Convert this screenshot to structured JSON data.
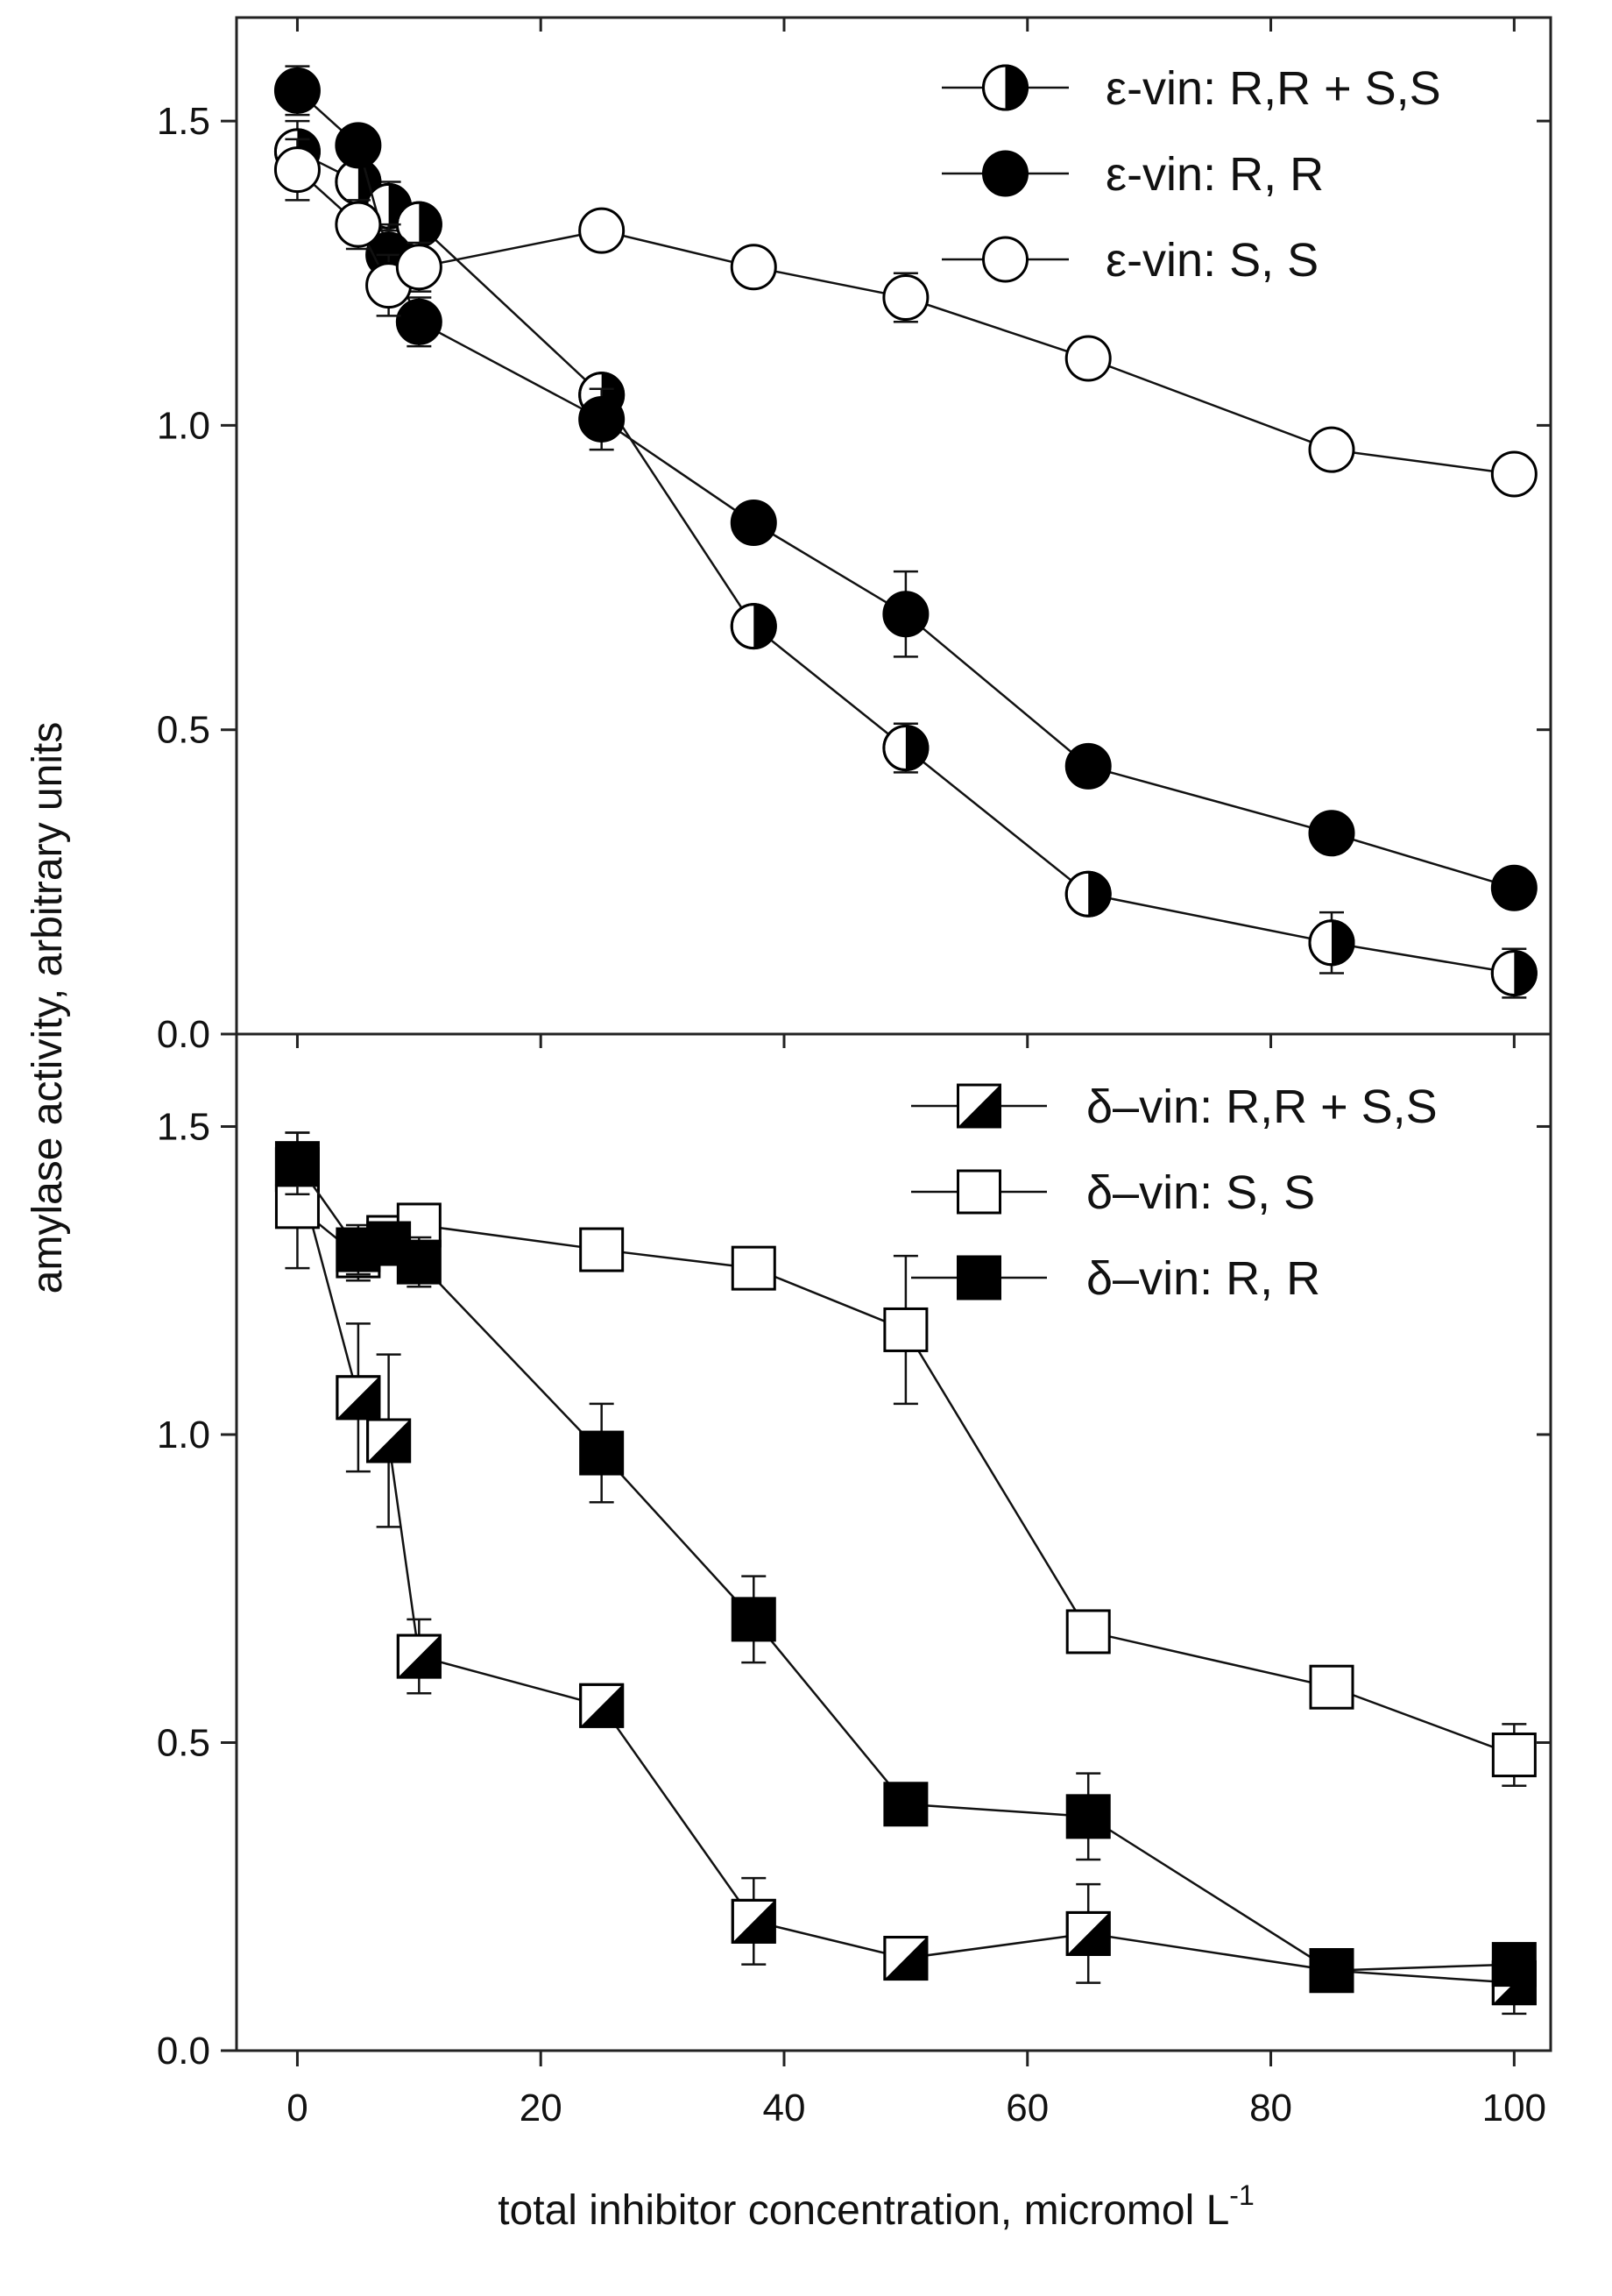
{
  "chart_data": [
    {
      "type": "line",
      "panel": "top",
      "title": "",
      "xlabel": "total inhibitor concentration, micromol L",
      "xlabel_superscript": "-1",
      "ylabel": "amylase activity, arbitrary units",
      "xlim": [
        -5,
        103
      ],
      "ylim": [
        0.0,
        1.67
      ],
      "xticks": [
        0,
        20,
        40,
        60,
        80,
        100
      ],
      "yticks": [
        0.0,
        0.5,
        1.0,
        1.5
      ],
      "ytick_labels": [
        "0.0",
        "0.5",
        "1.0",
        "1.5"
      ],
      "legend_position": "top-right",
      "series": [
        {
          "name": "ε-vin: R,R + S,S",
          "marker": "circle-half",
          "x": [
            0,
            5,
            7.5,
            10,
            25,
            37.5,
            50,
            65,
            85,
            100
          ],
          "y": [
            1.45,
            1.4,
            1.36,
            1.33,
            1.05,
            0.67,
            0.47,
            0.23,
            0.15,
            0.1
          ],
          "err": [
            0.05,
            0.03,
            0.04,
            0.03,
            0.02,
            0.02,
            0.04,
            0.02,
            0.05,
            0.04
          ]
        },
        {
          "name": "ε-vin: R, R",
          "marker": "circle-filled",
          "x": [
            0,
            5,
            7.5,
            10,
            25,
            37.5,
            50,
            65,
            85,
            100
          ],
          "y": [
            1.55,
            1.46,
            1.28,
            1.17,
            1.01,
            0.84,
            0.69,
            0.44,
            0.33,
            0.24
          ],
          "err": [
            0.04,
            0.03,
            0.05,
            0.04,
            0.05,
            0.02,
            0.07,
            0.02,
            0.02,
            0.02
          ]
        },
        {
          "name": "ε-vin: S, S",
          "marker": "circle-open",
          "x": [
            0,
            5,
            7.5,
            10,
            25,
            37.5,
            50,
            65,
            85,
            100
          ],
          "y": [
            1.42,
            1.33,
            1.23,
            1.26,
            1.32,
            1.26,
            1.21,
            1.11,
            0.96,
            0.92
          ],
          "err": [
            0.05,
            0.04,
            0.05,
            0.04,
            0.02,
            0.02,
            0.04,
            0.02,
            0.02,
            0.02
          ]
        }
      ]
    },
    {
      "type": "line",
      "panel": "bottom",
      "title": "",
      "xlabel": "total inhibitor concentration, micromol L",
      "xlabel_superscript": "-1",
      "ylabel": "amylase activity, arbitrary units",
      "xlim": [
        -5,
        103
      ],
      "ylim": [
        0.0,
        1.65
      ],
      "xticks": [
        0,
        20,
        40,
        60,
        80,
        100
      ],
      "xtick_labels": [
        "0",
        "20",
        "40",
        "60",
        "80",
        "100"
      ],
      "yticks": [
        0.0,
        0.5,
        1.0,
        1.5
      ],
      "ytick_labels": [
        "0.0",
        "0.5",
        "1.0",
        "1.5"
      ],
      "legend_position": "top-right",
      "series": [
        {
          "name": "δ–vin: R,R + S,S",
          "marker": "square-diagonal",
          "x": [
            0,
            5,
            7.5,
            10,
            25,
            37.5,
            50,
            65,
            85,
            100
          ],
          "y": [
            1.43,
            1.06,
            0.99,
            0.64,
            0.56,
            0.21,
            0.15,
            0.19,
            0.13,
            0.11
          ],
          "err": [
            0.06,
            0.12,
            0.14,
            0.06,
            0.02,
            0.07,
            0.03,
            0.08,
            0.02,
            0.05
          ]
        },
        {
          "name": "δ–vin: S, S",
          "marker": "square-open",
          "x": [
            0,
            5,
            7.5,
            10,
            25,
            37.5,
            50,
            65,
            85,
            100
          ],
          "y": [
            1.37,
            1.29,
            1.32,
            1.34,
            1.3,
            1.27,
            1.17,
            0.68,
            0.59,
            0.48
          ],
          "err": [
            0.1,
            0.04,
            0.03,
            0.02,
            0.02,
            0.02,
            0.12,
            0.02,
            0.02,
            0.05
          ]
        },
        {
          "name": "δ–vin: R, R",
          "marker": "square-filled",
          "x": [
            0,
            5,
            7.5,
            10,
            25,
            37.5,
            50,
            65,
            85,
            100
          ],
          "y": [
            1.44,
            1.3,
            1.31,
            1.28,
            0.97,
            0.7,
            0.4,
            0.38,
            0.13,
            0.14
          ],
          "err": [
            0.05,
            0.04,
            0.03,
            0.04,
            0.08,
            0.07,
            0.02,
            0.07,
            0.02,
            0.02
          ]
        }
      ]
    }
  ]
}
